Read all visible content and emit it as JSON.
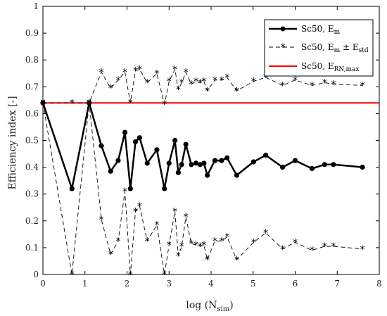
{
  "chart_data": {
    "type": "line",
    "xlabel": "log (N",
    "xlabel_sub": "sim",
    "xlabel_close": ")",
    "ylabel": "Efficiency index [-]",
    "xlim": [
      0,
      8
    ],
    "ylim": [
      0,
      1
    ],
    "xticks": [
      0,
      1,
      2,
      3,
      4,
      5,
      6,
      7,
      8
    ],
    "yticks": [
      0,
      0.1,
      0.2,
      0.3,
      0.4,
      0.5,
      0.6,
      0.7,
      0.8,
      0.9,
      1
    ],
    "grid": false,
    "legend_position": "top-right",
    "legend": [
      {
        "text": "Sc50, E",
        "sub": "m",
        "rest": ""
      },
      {
        "text": "Sc50, E",
        "sub": "m",
        "rest": " ± E",
        "sub2": "std"
      },
      {
        "text": "Sc50, E",
        "sub": "RN,max",
        "rest": ""
      }
    ],
    "colors": {
      "mean": "#000000",
      "std": "#000000",
      "rnmax": "#ff0000"
    },
    "series": [
      {
        "key": "mean",
        "x": [
          0,
          0.69,
          1.1,
          1.39,
          1.61,
          1.79,
          1.95,
          2.08,
          2.2,
          2.3,
          2.48,
          2.71,
          2.89,
          3.0,
          3.14,
          3.22,
          3.3,
          3.4,
          3.53,
          3.64,
          3.74,
          3.83,
          3.91,
          4.09,
          4.25,
          4.38,
          4.61,
          5.01,
          5.3,
          5.7,
          6.0,
          6.4,
          6.7,
          6.91,
          7.6
        ],
        "values": [
          0.64,
          0.32,
          0.64,
          0.48,
          0.385,
          0.425,
          0.53,
          0.32,
          0.495,
          0.51,
          0.415,
          0.465,
          0.32,
          0.415,
          0.5,
          0.38,
          0.41,
          0.485,
          0.41,
          0.415,
          0.41,
          0.415,
          0.37,
          0.425,
          0.425,
          0.435,
          0.37,
          0.42,
          0.445,
          0.4,
          0.425,
          0.395,
          0.41,
          0.41,
          0.4
        ]
      },
      {
        "key": "upper",
        "x": [
          0,
          0.69,
          1.1,
          1.39,
          1.61,
          1.79,
          1.95,
          2.08,
          2.2,
          2.3,
          2.48,
          2.71,
          2.89,
          3.0,
          3.14,
          3.22,
          3.3,
          3.4,
          3.53,
          3.64,
          3.74,
          3.83,
          3.91,
          4.09,
          4.25,
          4.38,
          4.61,
          5.01,
          5.3,
          5.7,
          6.0,
          6.4,
          6.7,
          6.91,
          7.6
        ],
        "values": [
          0.64,
          0.64,
          0.64,
          0.755,
          0.695,
          0.725,
          0.755,
          0.64,
          0.76,
          0.765,
          0.715,
          0.75,
          0.635,
          0.72,
          0.765,
          0.69,
          0.715,
          0.755,
          0.71,
          0.72,
          0.715,
          0.72,
          0.685,
          0.725,
          0.725,
          0.735,
          0.685,
          0.72,
          0.735,
          0.705,
          0.725,
          0.705,
          0.715,
          0.71,
          0.705
        ]
      },
      {
        "key": "lower",
        "x": [
          0,
          0.69,
          1.1,
          1.39,
          1.61,
          1.79,
          1.95,
          2.08,
          2.2,
          2.3,
          2.48,
          2.71,
          2.89,
          3.0,
          3.14,
          3.22,
          3.3,
          3.4,
          3.53,
          3.64,
          3.74,
          3.83,
          3.91,
          4.09,
          4.25,
          4.38,
          4.61,
          5.01,
          5.3,
          5.7,
          6.0,
          6.4,
          6.7,
          6.91,
          7.6
        ],
        "values": [
          0.64,
          0.0,
          0.64,
          0.205,
          0.075,
          0.125,
          0.31,
          0.0,
          0.235,
          0.255,
          0.125,
          0.185,
          0.0,
          0.11,
          0.235,
          0.07,
          0.105,
          0.215,
          0.115,
          0.11,
          0.105,
          0.11,
          0.055,
          0.125,
          0.125,
          0.14,
          0.055,
          0.12,
          0.155,
          0.095,
          0.12,
          0.09,
          0.105,
          0.105,
          0.095
        ]
      },
      {
        "key": "rnmax",
        "x": [
          0,
          8
        ],
        "values": [
          0.64,
          0.64
        ]
      }
    ]
  }
}
